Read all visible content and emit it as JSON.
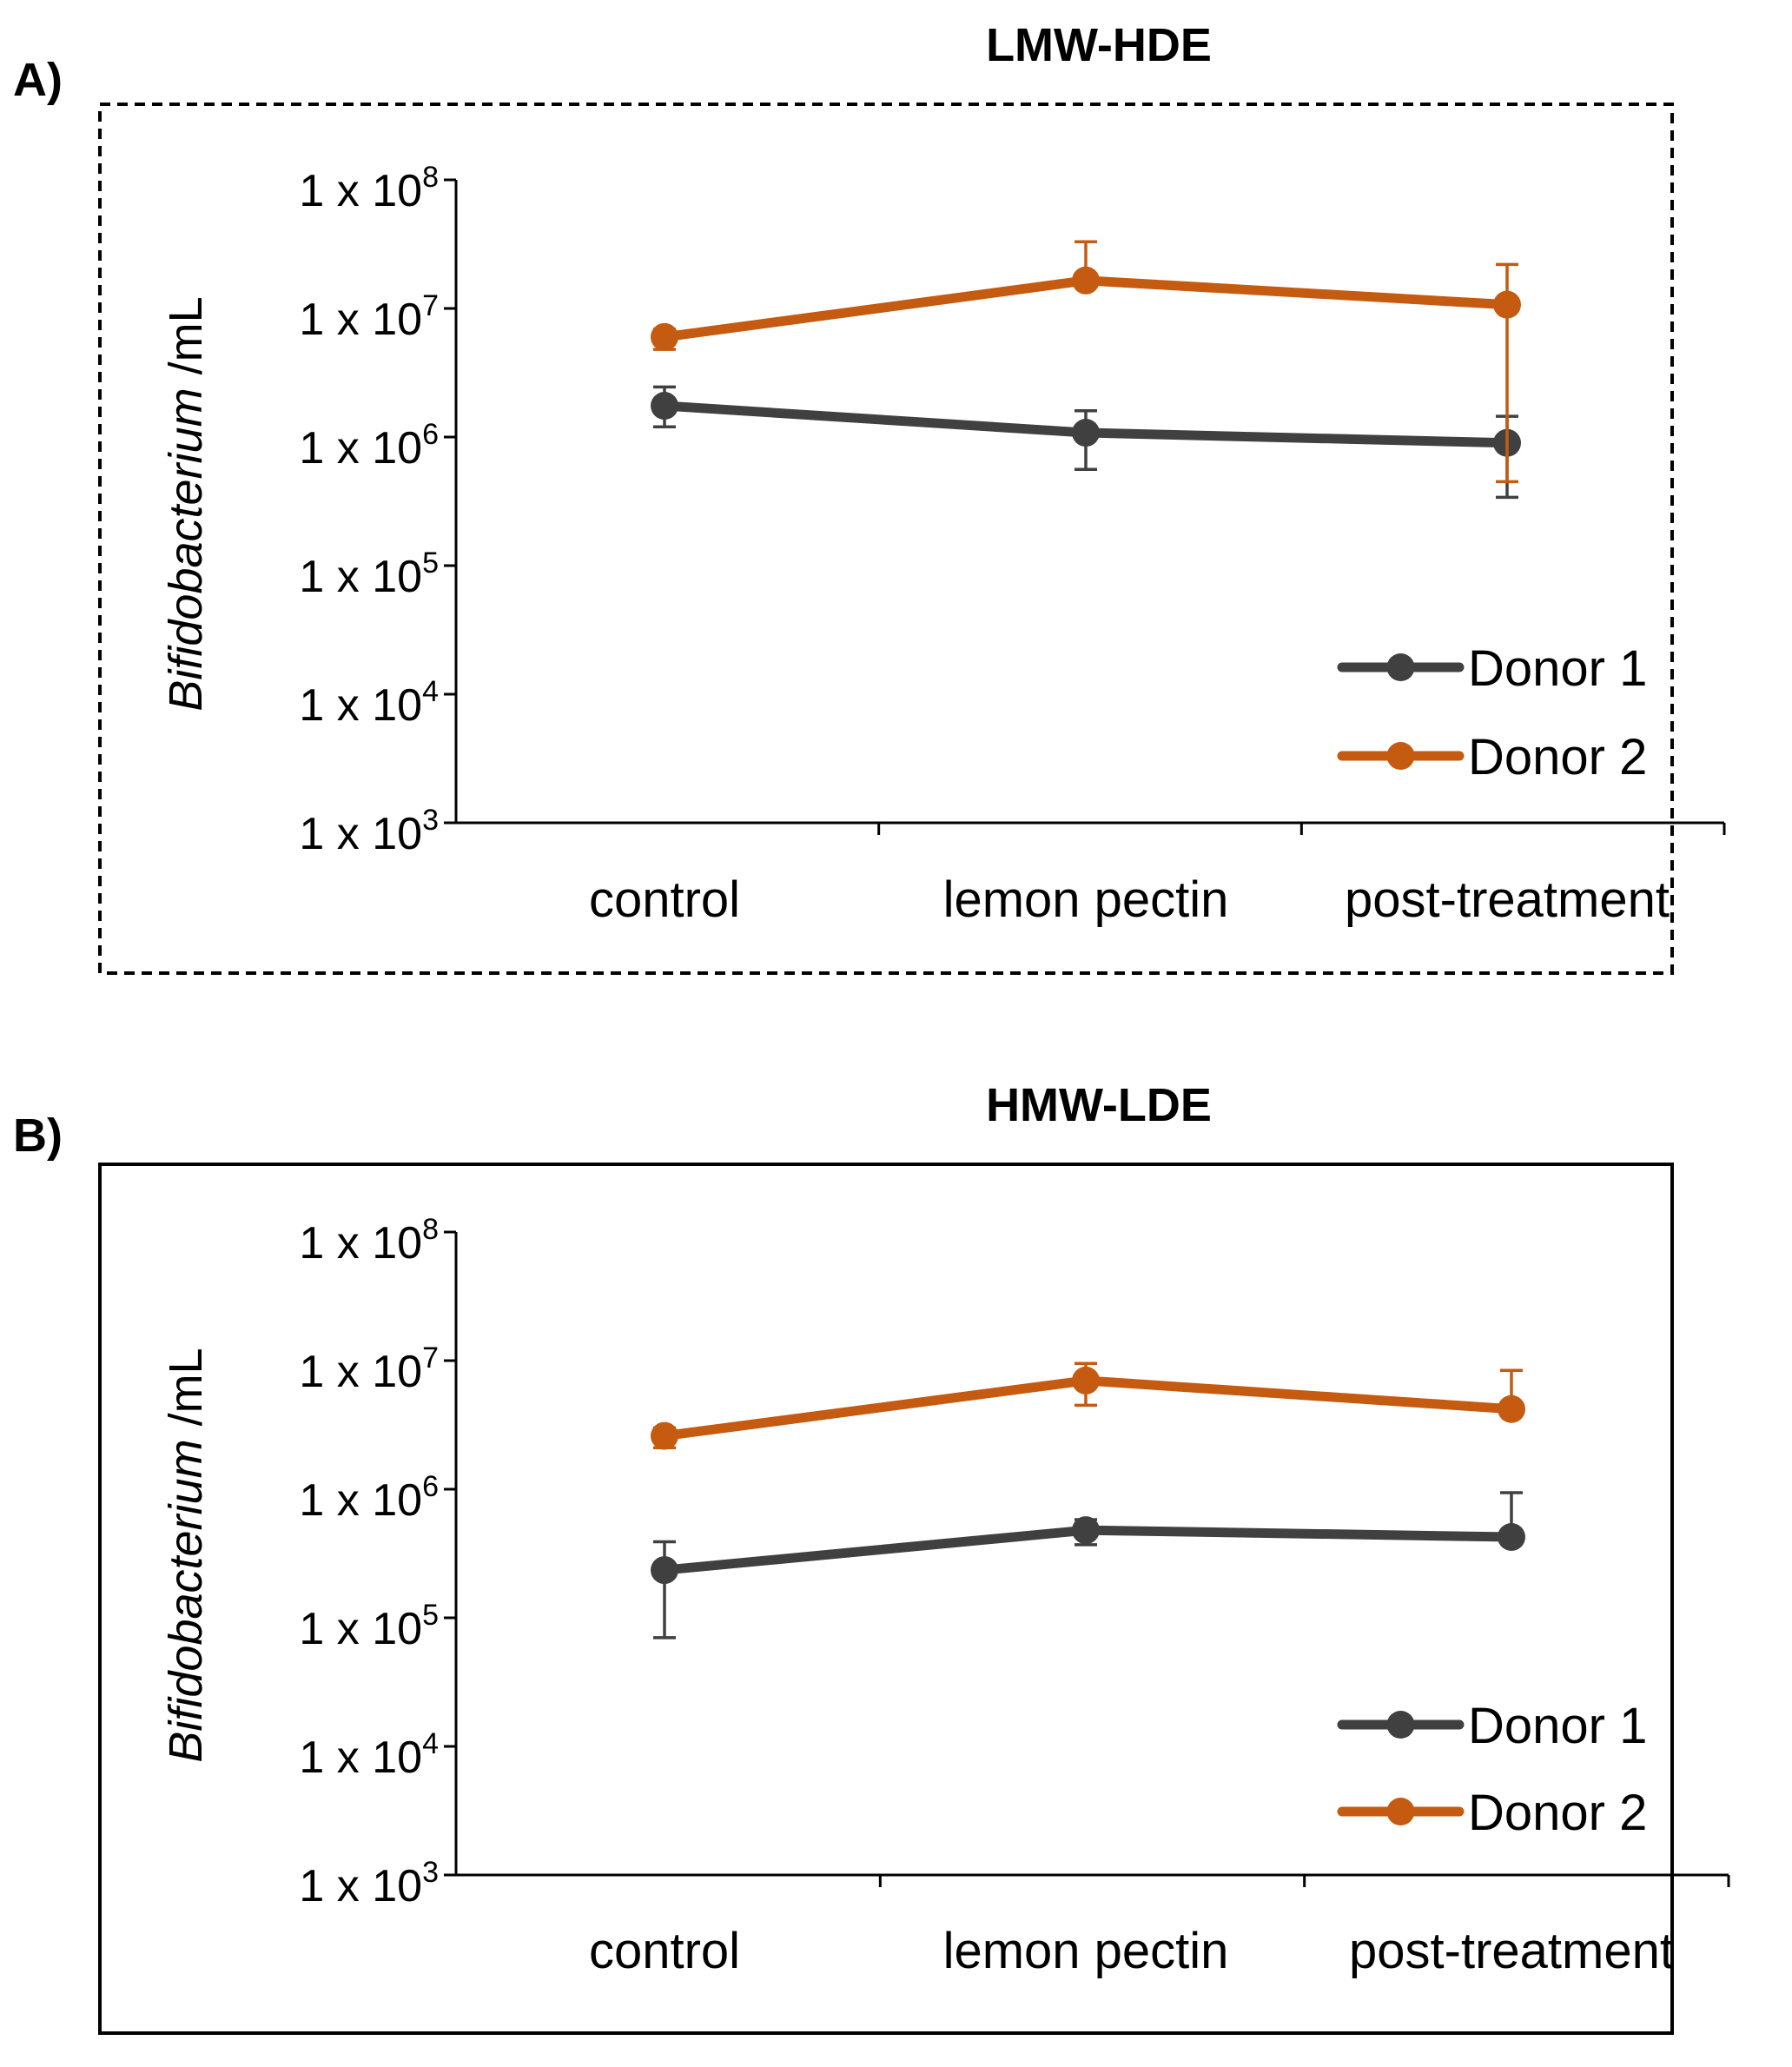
{
  "chart_data": [
    {
      "type": "line",
      "panel": "A)",
      "title": "LMW-HDE",
      "border": "dashed",
      "xlabel": "",
      "ylabel_italic": "Bifidobacterium",
      "ylabel_rest": " /mL",
      "yscale": "log",
      "ylim": [
        1000,
        100000000
      ],
      "yticks": [
        {
          "value": 100000000,
          "base": "1 x 10",
          "exp": "8"
        },
        {
          "value": 10000000,
          "base": "1 x 10",
          "exp": "7"
        },
        {
          "value": 1000000,
          "base": "1 x 10",
          "exp": "6"
        },
        {
          "value": 100000,
          "base": "1 x 10",
          "exp": "5"
        },
        {
          "value": 10000,
          "base": "1 x 10",
          "exp": "4"
        },
        {
          "value": 1000,
          "base": "1 x 10",
          "exp": "3"
        }
      ],
      "categories": [
        "control",
        "lemon pectin",
        "post-treatment"
      ],
      "legend": "bottom-right",
      "series": [
        {
          "name": "Donor 1",
          "color": "#404040",
          "values": [
            1750000,
            1080000,
            900000
          ],
          "err_low": [
            1200000,
            560000,
            340000
          ],
          "err_high": [
            2450000,
            1600000,
            1450000
          ]
        },
        {
          "name": "Donor 2",
          "color": "#C55A11",
          "values": [
            6000000,
            16500000,
            10700000
          ],
          "err_low": [
            4800000,
            16500000,
            450000
          ],
          "err_high": [
            6900000,
            33000000,
            22000000
          ]
        }
      ]
    },
    {
      "type": "line",
      "panel": "B)",
      "title": "HMW-LDE",
      "border": "solid",
      "xlabel": "",
      "ylabel_italic": "Bifidobacterium",
      "ylabel_rest": " /mL",
      "yscale": "log",
      "ylim": [
        1000,
        100000000
      ],
      "yticks": [
        {
          "value": 100000000,
          "base": "1 x 10",
          "exp": "8"
        },
        {
          "value": 10000000,
          "base": "1 x 10",
          "exp": "7"
        },
        {
          "value": 1000000,
          "base": "1 x 10",
          "exp": "6"
        },
        {
          "value": 100000,
          "base": "1 x 10",
          "exp": "5"
        },
        {
          "value": 10000,
          "base": "1 x 10",
          "exp": "4"
        },
        {
          "value": 1000,
          "base": "1 x 10",
          "exp": "3"
        }
      ],
      "categories": [
        "control",
        "lemon pectin",
        "post-treatment"
      ],
      "legend": "bottom-right",
      "series": [
        {
          "name": "Donor 1",
          "color": "#404040",
          "values": [
            235000,
            480000,
            425000
          ],
          "err_low": [
            70000,
            370000,
            425000
          ],
          "err_high": [
            390000,
            580000,
            940000
          ]
        },
        {
          "name": "Donor 2",
          "color": "#C55A11",
          "values": [
            2600000,
            7000000,
            4200000
          ],
          "err_low": [
            2100000,
            4500000,
            4200000
          ],
          "err_high": [
            3000000,
            9500000,
            8400000
          ]
        }
      ]
    }
  ]
}
